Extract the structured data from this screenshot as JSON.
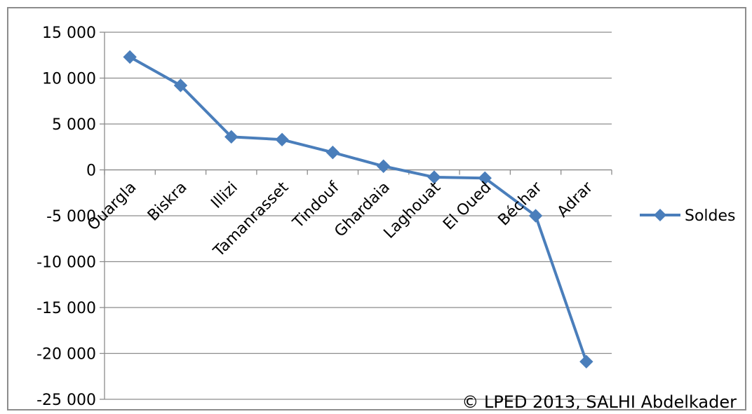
{
  "chart_data": {
    "type": "line",
    "categories": [
      "Ouargla",
      "Biskra",
      "Illizi",
      "Tamanrasset",
      "Tindouf",
      "Ghardaia",
      "Laghouat",
      "El Oued",
      "Béchar",
      "Adrar"
    ],
    "series": [
      {
        "name": "Soldes",
        "values": [
          12300,
          9200,
          3600,
          3300,
          1900,
          400,
          -800,
          -900,
          -5000,
          -20900
        ],
        "color": "#4a7ebb",
        "marker": "diamond"
      }
    ],
    "ylim": [
      -25000,
      15000
    ],
    "yticks": [
      15000,
      10000,
      5000,
      0,
      -5000,
      -10000,
      -15000,
      -20000,
      -25000
    ],
    "ytick_labels": [
      "15 000",
      "10 000",
      "5 000",
      "0",
      "-5 000",
      "-10 000",
      "-15 000",
      "-20 000",
      "-25 000"
    ],
    "grid": true,
    "legend_position": "right",
    "title": "",
    "xlabel": "",
    "ylabel": ""
  },
  "copyright": "© LPED 2013, SALHI Abdelkader"
}
